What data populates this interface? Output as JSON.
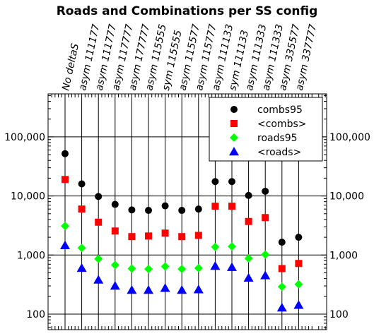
{
  "chart_data": {
    "type": "scatter",
    "title": "Roads and Combinations per SS config",
    "xlabel": "",
    "ylabel": "",
    "yscale": "log",
    "ylim": [
      70,
      300000
    ],
    "grid": "vertical-and-major-horizontal",
    "legend_position": "top-right",
    "categories": [
      "No deltaS",
      "asym 111177",
      "asym 111777",
      "asym 117777",
      "asym 177777",
      "asym 115555",
      "sym 115555",
      "asym 115577",
      "asym 115777",
      "asym 111133",
      "sym 111133",
      "asym 111333",
      "asym 111333",
      "asym 335577",
      "asym 337777"
    ],
    "yticks": [
      {
        "value": 100,
        "label": "100"
      },
      {
        "value": 1000,
        "label": "1,000"
      },
      {
        "value": 10000,
        "label": "10,000"
      },
      {
        "value": 100000,
        "label": "100,000"
      }
    ],
    "series": [
      {
        "name": "combs95",
        "marker": "circle",
        "color": "#000000",
        "values": [
          52000,
          16000,
          9800,
          7200,
          5800,
          5700,
          6800,
          5700,
          6000,
          17500,
          17500,
          10200,
          12000,
          1650,
          2000
        ]
      },
      {
        "name": "<combs>",
        "marker": "square",
        "color": "#ff0000",
        "values": [
          19000,
          6000,
          3600,
          2550,
          2050,
          2100,
          2350,
          2050,
          2150,
          6700,
          6700,
          3700,
          4300,
          590,
          720
        ]
      },
      {
        "name": "roads95",
        "marker": "diamond",
        "color": "#00ff00",
        "values": [
          3100,
          1320,
          860,
          680,
          590,
          580,
          640,
          580,
          600,
          1370,
          1400,
          880,
          1020,
          290,
          320
        ]
      },
      {
        "name": "<roads>",
        "marker": "triangle",
        "color": "#0000ff",
        "values": [
          1450,
          600,
          380,
          300,
          255,
          255,
          275,
          255,
          260,
          650,
          620,
          410,
          450,
          128,
          142
        ]
      }
    ]
  }
}
